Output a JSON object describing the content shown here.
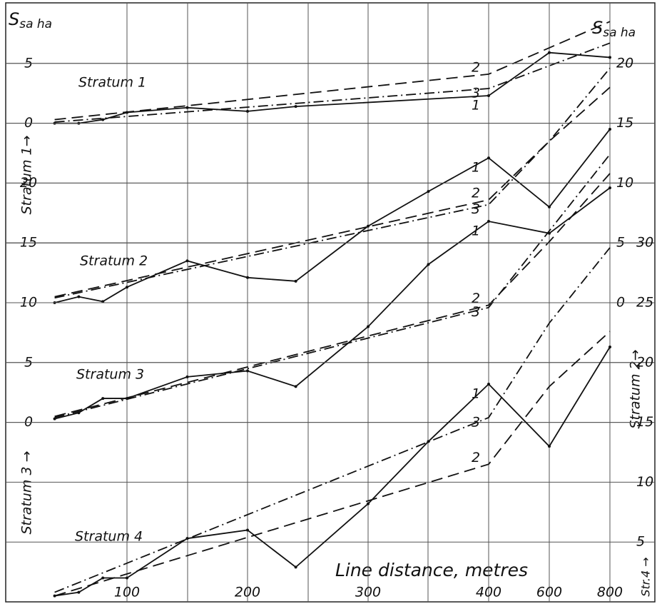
{
  "chart_data": [
    {
      "type": "line",
      "title": "Stratum 1",
      "ylabel": "Stratum 1→",
      "yaxis_side": "left",
      "unit_label": {
        "symbol": "S",
        "subscript": "sa ha"
      },
      "xlabel": "Line distance, metres",
      "xticks": [
        100,
        200,
        300,
        400,
        600,
        800
      ],
      "ylim": [
        -40,
        10
      ],
      "yticks": [
        0,
        5
      ],
      "grid": true,
      "series": [
        {
          "name": "1",
          "style": "solid",
          "color": "#111111",
          "x": [
            40,
            60,
            80,
            100,
            150,
            200,
            240,
            400,
            600,
            800
          ],
          "values": [
            0,
            0,
            0.3,
            0.9,
            1.3,
            1.0,
            1.4,
            2.3,
            5.9,
            5.5
          ]
        },
        {
          "name": "2",
          "style": "dashed",
          "color": "#111111",
          "x": [
            40,
            400,
            800
          ],
          "values": [
            0.3,
            4.1,
            8.5
          ]
        },
        {
          "name": "3",
          "style": "dashdot",
          "color": "#111111",
          "x": [
            40,
            400,
            800
          ],
          "values": [
            0.1,
            2.9,
            6.7
          ]
        }
      ]
    },
    {
      "type": "line",
      "title": "Stratum 2",
      "ylabel": "Stratum 2→",
      "yaxis_side": "right",
      "ylim": [
        -25,
        25
      ],
      "yticks": [
        0,
        5,
        10,
        15,
        20
      ],
      "grid": true,
      "series": [
        {
          "name": "1",
          "style": "solid",
          "color": "#111111",
          "x": [
            40,
            60,
            80,
            100,
            150,
            200,
            240,
            300,
            350,
            400,
            600,
            800
          ],
          "values": [
            0,
            0.5,
            0.1,
            1.3,
            3.5,
            2.1,
            1.8,
            6.4,
            9.3,
            12.1,
            8.0,
            14.5
          ]
        },
        {
          "name": "2",
          "style": "dashed",
          "color": "#111111",
          "x": [
            40,
            400,
            600,
            800
          ],
          "values": [
            0.5,
            8.6,
            13.5,
            18.0
          ]
        },
        {
          "name": "3",
          "style": "dashdot",
          "color": "#111111",
          "x": [
            40,
            400,
            600,
            800
          ],
          "values": [
            0.4,
            8.2,
            13.5,
            19.6
          ]
        }
      ]
    },
    {
      "type": "line",
      "title": "Stratum 3",
      "ylabel": "Stratum 3 →",
      "yaxis_side": "left",
      "ylim": [
        -15,
        35
      ],
      "yticks": [
        0,
        5,
        10,
        15,
        20
      ],
      "grid": true,
      "series": [
        {
          "name": "1",
          "style": "solid",
          "color": "#111111",
          "x": [
            40,
            60,
            80,
            100,
            150,
            200,
            240,
            300,
            350,
            400,
            600,
            800
          ],
          "values": [
            0.3,
            0.8,
            2.0,
            2.0,
            3.8,
            4.3,
            3.0,
            8.0,
            13.2,
            16.8,
            15.8,
            19.6
          ]
        },
        {
          "name": "2",
          "style": "dashed",
          "color": "#111111",
          "x": [
            40,
            400,
            600,
            800
          ],
          "values": [
            0.5,
            9.8,
            15.1,
            20.8
          ]
        },
        {
          "name": "3",
          "style": "dashdot",
          "color": "#111111",
          "x": [
            40,
            400,
            600,
            800
          ],
          "values": [
            0.4,
            9.6,
            16.0,
            22.4
          ]
        }
      ]
    },
    {
      "type": "line",
      "title": "Stratum 4",
      "ylabel": "Str.4 →",
      "yaxis_side": "right",
      "ylim": [
        0,
        50
      ],
      "yticks": [
        5,
        10,
        15,
        20,
        25,
        30
      ],
      "grid": true,
      "series": [
        {
          "name": "1",
          "style": "solid",
          "color": "#111111",
          "x": [
            40,
            60,
            80,
            100,
            150,
            200,
            240,
            300,
            350,
            400,
            600,
            800
          ],
          "values": [
            0.5,
            0.8,
            2.0,
            2.0,
            5.3,
            6.0,
            2.9,
            8.2,
            13.4,
            18.2,
            13.0,
            21.3
          ]
        },
        {
          "name": "2",
          "style": "dashed",
          "color": "#111111",
          "x": [
            40,
            400,
            600,
            800
          ],
          "values": [
            0.5,
            11.5,
            18.0,
            22.6
          ]
        },
        {
          "name": "3",
          "style": "dashdot",
          "color": "#111111",
          "x": [
            40,
            400,
            600,
            800
          ],
          "values": [
            0.8,
            15.4,
            23.3,
            29.6
          ]
        }
      ]
    }
  ]
}
